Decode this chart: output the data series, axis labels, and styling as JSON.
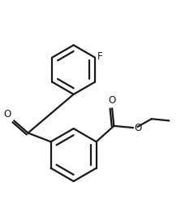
{
  "background": "#ffffff",
  "line_color": "#1a1a1a",
  "line_width": 1.6,
  "font_size": 8.5,
  "label_F": "F",
  "label_O1": "O",
  "label_O2": "O",
  "label_O3": "O",
  "fig_width": 2.23,
  "fig_height": 2.73,
  "xlim": [
    0,
    10
  ],
  "ylim": [
    0,
    12
  ]
}
